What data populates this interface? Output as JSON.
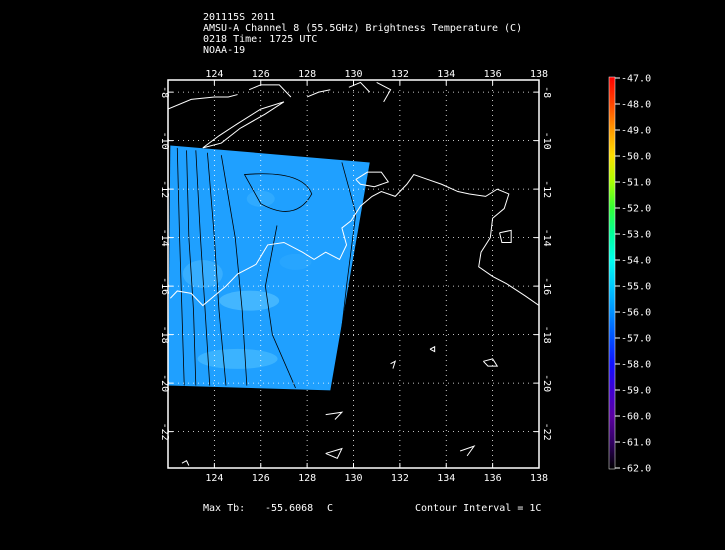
{
  "header": {
    "line1": "201115S 2011",
    "line2": "AMSU-A Channel 8 (55.5GHz) Brightness Temperature (C)",
    "line3": "0218 Time: 1725 UTC",
    "line4": "NOAA-19"
  },
  "map": {
    "lon_min": 122,
    "lon_max": 138,
    "lat_min": -23.5,
    "lat_max": -7.5,
    "x_ticks": [
      124,
      126,
      128,
      130,
      132,
      134,
      136,
      138
    ],
    "y_ticks": [
      -8,
      -10,
      -12,
      -14,
      -16,
      -18,
      -20,
      -22
    ],
    "swath_corners_lonlat": [
      [
        122.1,
        -10.2
      ],
      [
        130.7,
        -10.9
      ],
      [
        129,
        -20.3
      ],
      [
        122,
        -20.1
      ]
    ],
    "swath_color": "#1fa0ff",
    "coast_color": "#ffffff",
    "contour_color": "#000000",
    "gridline_style": "dotted"
  },
  "colorbar": {
    "ticks": [
      "-47.0",
      "-48.0",
      "-49.0",
      "-50.0",
      "-51.0",
      "-52.0",
      "-53.0",
      "-54.0",
      "-55.0",
      "-56.0",
      "-57.0",
      "-58.0",
      "-59.0",
      "-60.0",
      "-61.0",
      "-62.0"
    ],
    "stops": [
      "#ff0000",
      "#ff4400",
      "#ff9900",
      "#ffdd00",
      "#aaff00",
      "#33ff33",
      "#00ff99",
      "#00ffee",
      "#00c8ff",
      "#0090ff",
      "#0050ff",
      "#1010ff",
      "#4000d0",
      "#5a00a0",
      "#300060",
      "#000000"
    ]
  },
  "footer": {
    "max_label": "Max Tb:",
    "max_value": "-55.6068",
    "max_unit": "C",
    "contour": "Contour Interval = 1C"
  }
}
